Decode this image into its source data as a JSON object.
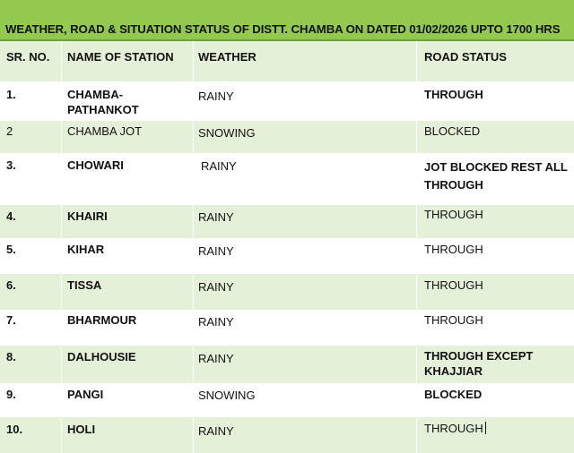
{
  "title": "WEATHER, ROAD & SITUATION STATUS OF DISTT. CHAMBA ON DATED 01/02/2026 UPTO 1700 HRS",
  "headers": {
    "sr_no": "SR. NO.",
    "station": "NAME OF STATION",
    "weather": "WEATHER",
    "road": "ROAD STATUS"
  },
  "rows": [
    {
      "sr": "1.",
      "station": "CHAMBA-PATHANKOT",
      "weather": "RAINY",
      "road": "THROUGH"
    },
    {
      "sr": "2",
      "station": "CHAMBA JOT",
      "weather": "SNOWING",
      "road": "BLOCKED"
    },
    {
      "sr": "3.",
      "station": "CHOWARI",
      "weather": "RAINY",
      "road": "JOT BLOCKED REST ALL THROUGH"
    },
    {
      "sr": "4.",
      "station": "KHAIRI",
      "weather": "RAINY",
      "road": "THROUGH"
    },
    {
      "sr": "5.",
      "station": "KIHAR",
      "weather": "RAINY",
      "road": "THROUGH"
    },
    {
      "sr": "6.",
      "station": "TISSA",
      "weather": "RAINY",
      "road": "THROUGH"
    },
    {
      "sr": "7.",
      "station": "BHARMOUR",
      "weather": "RAINY",
      "road": "THROUGH"
    },
    {
      "sr": "8.",
      "station": "DALHOUSIE",
      "weather": "RAINY",
      "road": "THROUGH EXCEPT KHAJJIAR"
    },
    {
      "sr": "9.",
      "station": "PANGI",
      "weather": "SNOWING",
      "road": "BLOCKED"
    },
    {
      "sr": "10.",
      "station": "HOLI",
      "weather": "RAINY",
      "road": "THROUGH"
    }
  ],
  "colors": {
    "title_bg": "#92c94e",
    "row_alt_bg": "#e5f0d9",
    "row_bg": "#ffffff"
  }
}
